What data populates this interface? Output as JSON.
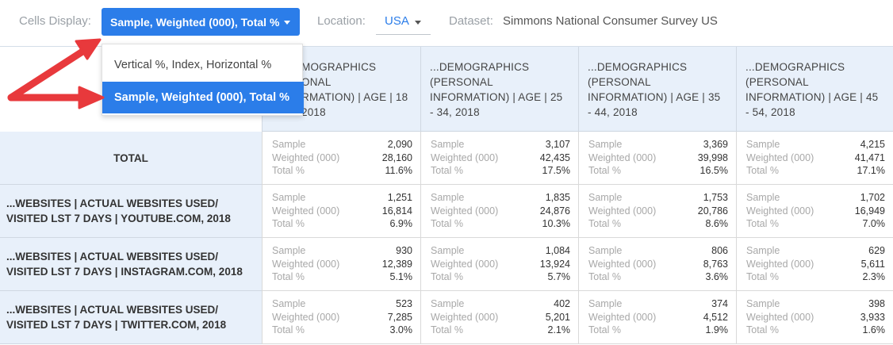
{
  "toolbar": {
    "cells_display_label": "Cells Display:",
    "cells_display_value": "Sample, Weighted (000), Total %",
    "location_label": "Location:",
    "location_value": "USA",
    "dataset_label": "Dataset:",
    "dataset_value": "Simmons National Consumer Survey US"
  },
  "dropdown": {
    "options": [
      "Vertical %, Index, Horizontal %",
      "Sample, Weighted (000), Total %"
    ],
    "selected": "Sample, Weighted (000), Total %"
  },
  "colors": {
    "accent": "#2b7de9",
    "header_bg": "#e8f0fa",
    "arrow": "#e8393c"
  },
  "table": {
    "columns": [
      {
        "line1": "...DEMOGRAPHICS",
        "line2": "(PERSONAL",
        "line3": "INFORMATION) | AGE | 18",
        "line4": "- 24, 2018",
        "line1_visible": "MOGRAPHICS",
        "line2_visible": "ONAL",
        "line3_visible": "RMATION) | AGE | 18",
        "line4_visible": "2018"
      },
      {
        "line1": "...DEMOGRAPHICS",
        "line2": "(PERSONAL",
        "line3": "INFORMATION) | AGE | 25",
        "line4": "- 34, 2018"
      },
      {
        "line1": "...DEMOGRAPHICS",
        "line2": "(PERSONAL",
        "line3": "INFORMATION) | AGE | 35",
        "line4": "- 44, 2018"
      },
      {
        "line1": "...DEMOGRAPHICS",
        "line2": "(PERSONAL",
        "line3": "INFORMATION) | AGE | 45",
        "line4": "- 54, 2018"
      }
    ],
    "metric_labels": {
      "sample": "Sample",
      "weighted": "Weighted (000)",
      "total": "Total %"
    },
    "rows": [
      {
        "label1": "TOTAL",
        "label2": "",
        "cells": [
          {
            "sample": "2,090",
            "weighted": "28,160",
            "total": "11.6%"
          },
          {
            "sample": "3,107",
            "weighted": "42,435",
            "total": "17.5%"
          },
          {
            "sample": "3,369",
            "weighted": "39,998",
            "total": "16.5%"
          },
          {
            "sample": "4,215",
            "weighted": "41,471",
            "total": "17.1%"
          }
        ]
      },
      {
        "label1": "...WEBSITES | ACTUAL WEBSITES USED/",
        "label2": "VISITED LST 7 DAYS | YOUTUBE.COM, 2018",
        "cells": [
          {
            "sample": "1,251",
            "weighted": "16,814",
            "total": "6.9%"
          },
          {
            "sample": "1,835",
            "weighted": "24,876",
            "total": "10.3%"
          },
          {
            "sample": "1,753",
            "weighted": "20,786",
            "total": "8.6%"
          },
          {
            "sample": "1,702",
            "weighted": "16,949",
            "total": "7.0%"
          }
        ]
      },
      {
        "label1": "...WEBSITES | ACTUAL WEBSITES USED/",
        "label2": "VISITED LST 7 DAYS | INSTAGRAM.COM, 2018",
        "cells": [
          {
            "sample": "930",
            "weighted": "12,389",
            "total": "5.1%"
          },
          {
            "sample": "1,084",
            "weighted": "13,924",
            "total": "5.7%"
          },
          {
            "sample": "806",
            "weighted": "8,763",
            "total": "3.6%"
          },
          {
            "sample": "629",
            "weighted": "5,611",
            "total": "2.3%"
          }
        ]
      },
      {
        "label1": "...WEBSITES | ACTUAL WEBSITES USED/",
        "label2": "VISITED LST 7 DAYS | TWITTER.COM, 2018",
        "cells": [
          {
            "sample": "523",
            "weighted": "7,285",
            "total": "3.0%"
          },
          {
            "sample": "402",
            "weighted": "5,201",
            "total": "2.1%"
          },
          {
            "sample": "374",
            "weighted": "4,512",
            "total": "1.9%"
          },
          {
            "sample": "398",
            "weighted": "3,933",
            "total": "1.6%"
          }
        ]
      }
    ]
  }
}
